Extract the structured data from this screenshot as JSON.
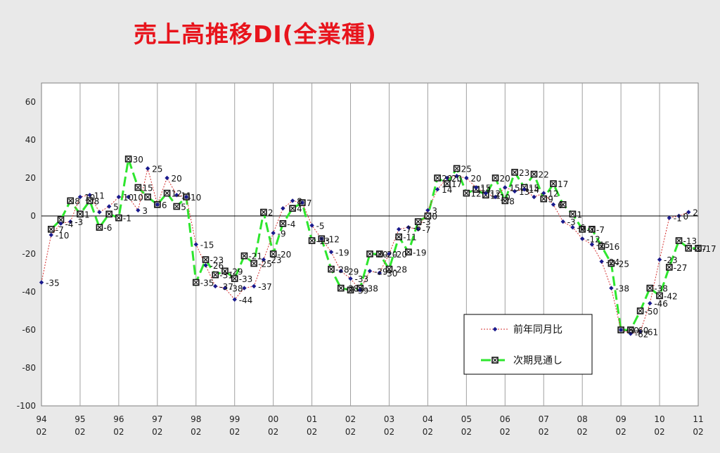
{
  "title": "売上高推移DI(全業種)",
  "chart_data": {
    "type": "line",
    "ylim": [
      -100,
      70
    ],
    "yticks": [
      60,
      40,
      20,
      0,
      -20,
      -40,
      -60,
      -80,
      -100
    ],
    "x_year_ticks": [
      "94",
      "95",
      "96",
      "97",
      "98",
      "99",
      "00",
      "01",
      "02",
      "03",
      "04",
      "05",
      "06",
      "07",
      "08",
      "09",
      "10",
      "11"
    ],
    "x_month_ticks": [
      "02",
      "02",
      "02",
      "02",
      "02",
      "02",
      "02",
      "02",
      "02",
      "02",
      "02",
      "02",
      "02",
      "02",
      "02",
      "02",
      "02",
      "02"
    ],
    "grid": true,
    "legend_position": "bottom-right",
    "series": [
      {
        "name": "前年同月比",
        "color": "#d43030",
        "marker_color": "#1a1a8c",
        "points": [
          [
            0,
            -35
          ],
          [
            0.25,
            -10
          ],
          [
            0.5,
            -4
          ],
          [
            0.75,
            -3
          ],
          [
            1,
            10
          ],
          [
            1.25,
            11
          ],
          [
            1.5,
            2
          ],
          [
            1.75,
            5
          ],
          [
            2,
            10
          ],
          [
            2.25,
            10
          ],
          [
            2.5,
            3
          ],
          [
            2.75,
            25
          ],
          [
            3,
            6
          ],
          [
            3.25,
            20
          ],
          [
            3.5,
            11
          ],
          [
            3.75,
            10
          ],
          [
            4,
            -15
          ],
          [
            4.25,
            -26
          ],
          [
            4.5,
            -37
          ],
          [
            4.75,
            -38
          ],
          [
            5,
            -44
          ],
          [
            5.25,
            -38
          ],
          [
            5.5,
            -37
          ],
          [
            5.75,
            -23
          ],
          [
            6,
            -9
          ],
          [
            6.25,
            4
          ],
          [
            6.5,
            8
          ],
          [
            6.75,
            7
          ],
          [
            7,
            -5
          ],
          [
            7.25,
            -12
          ],
          [
            7.5,
            -19
          ],
          [
            7.75,
            -29
          ],
          [
            8,
            -33
          ],
          [
            8.25,
            -39
          ],
          [
            8.5,
            -29
          ],
          [
            8.75,
            -30
          ],
          [
            9,
            -20
          ],
          [
            9.25,
            -7
          ],
          [
            9.5,
            -6
          ],
          [
            9.75,
            -7
          ],
          [
            10,
            3
          ],
          [
            10.25,
            14
          ],
          [
            10.5,
            20
          ],
          [
            10.75,
            21
          ],
          [
            11,
            20
          ],
          [
            11.25,
            15
          ],
          [
            11.5,
            12
          ],
          [
            11.75,
            10
          ],
          [
            12,
            15
          ],
          [
            12.25,
            13
          ],
          [
            12.5,
            14
          ],
          [
            12.75,
            10
          ],
          [
            13,
            12
          ],
          [
            13.25,
            6
          ],
          [
            13.5,
            -3
          ],
          [
            13.75,
            -6
          ],
          [
            14,
            -12
          ],
          [
            14.25,
            -15
          ],
          [
            14.5,
            -24
          ],
          [
            14.75,
            -38
          ],
          [
            15,
            -60
          ],
          [
            15.25,
            -62
          ],
          [
            15.5,
            -61
          ],
          [
            15.75,
            -46
          ],
          [
            16,
            -23
          ],
          [
            16.25,
            -1
          ],
          [
            16.5,
            0
          ],
          [
            16.75,
            2
          ]
        ]
      },
      {
        "name": "次期見通し",
        "color": "#2ee62e",
        "marker_color": "#111111",
        "points": [
          [
            0.25,
            -7
          ],
          [
            0.5,
            -2
          ],
          [
            0.75,
            8
          ],
          [
            1,
            1
          ],
          [
            1.25,
            8
          ],
          [
            1.5,
            -6
          ],
          [
            1.75,
            1
          ],
          [
            2,
            -1
          ],
          [
            2.25,
            30
          ],
          [
            2.5,
            15
          ],
          [
            2.75,
            10
          ],
          [
            3,
            6
          ],
          [
            3.25,
            12
          ],
          [
            3.5,
            5
          ],
          [
            3.75,
            10
          ],
          [
            4,
            -35
          ],
          [
            4.25,
            -23
          ],
          [
            4.5,
            -31
          ],
          [
            4.75,
            -29
          ],
          [
            5,
            -33
          ],
          [
            5.25,
            -21
          ],
          [
            5.5,
            -25
          ],
          [
            5.75,
            2
          ],
          [
            6,
            -20
          ],
          [
            6.25,
            -4
          ],
          [
            6.5,
            4
          ],
          [
            6.75,
            7
          ],
          [
            7,
            -13
          ],
          [
            7.25,
            -12
          ],
          [
            7.5,
            -28
          ],
          [
            7.75,
            -38
          ],
          [
            8,
            -39
          ],
          [
            8.25,
            -38
          ],
          [
            8.5,
            -20
          ],
          [
            8.75,
            -20
          ],
          [
            9,
            -28
          ],
          [
            9.25,
            -11
          ],
          [
            9.5,
            -19
          ],
          [
            9.75,
            -3
          ],
          [
            10,
            0
          ],
          [
            10.25,
            20
          ],
          [
            10.5,
            17
          ],
          [
            10.75,
            25
          ],
          [
            11,
            12
          ],
          [
            11.25,
            14
          ],
          [
            11.5,
            11
          ],
          [
            11.75,
            20
          ],
          [
            12,
            8
          ],
          [
            12.25,
            23
          ],
          [
            12.5,
            15
          ],
          [
            12.75,
            22
          ],
          [
            13,
            9
          ],
          [
            13.25,
            17
          ],
          [
            13.5,
            6
          ],
          [
            13.75,
            1
          ],
          [
            14,
            -7
          ],
          [
            14.25,
            -7
          ],
          [
            14.5,
            -16
          ],
          [
            14.75,
            -25
          ],
          [
            15,
            -60
          ],
          [
            15.25,
            -60
          ],
          [
            15.5,
            -50
          ],
          [
            15.75,
            -38
          ],
          [
            16,
            -42
          ],
          [
            16.25,
            -27
          ],
          [
            16.5,
            -13
          ],
          [
            16.75,
            -17
          ],
          [
            17,
            -17
          ]
        ]
      }
    ],
    "labels_a": [
      [
        0,
        -35,
        "-35"
      ],
      [
        0.25,
        -10,
        "-10"
      ],
      [
        0.5,
        -4,
        "-4"
      ],
      [
        0.75,
        -3,
        "-3"
      ],
      [
        1,
        10,
        "10"
      ],
      [
        1.25,
        11,
        "11"
      ],
      [
        1.75,
        5,
        "5"
      ],
      [
        2,
        10,
        "10"
      ],
      [
        2.25,
        10,
        "10"
      ],
      [
        2.5,
        3,
        "3"
      ],
      [
        2.75,
        25,
        "25"
      ],
      [
        3.25,
        20,
        "20"
      ],
      [
        3.5,
        11,
        "11"
      ],
      [
        4,
        -15,
        "-15"
      ],
      [
        4.25,
        -26,
        "-26"
      ],
      [
        4.5,
        -37,
        "-37"
      ],
      [
        4.75,
        -38,
        "-38"
      ],
      [
        5,
        -44,
        "-44"
      ],
      [
        5.5,
        -37,
        "-37"
      ],
      [
        5.75,
        -23,
        "-23"
      ],
      [
        6,
        -9,
        "-9"
      ],
      [
        6.5,
        8,
        "8"
      ],
      [
        7,
        -5,
        "-5"
      ],
      [
        7.25,
        -12,
        "-12"
      ],
      [
        7.5,
        -19,
        "-19"
      ],
      [
        7.75,
        -29,
        "-29"
      ],
      [
        8,
        -33,
        "-33"
      ],
      [
        8.5,
        -29,
        "-29"
      ],
      [
        8.75,
        -30,
        "-30"
      ],
      [
        9,
        -20,
        "-20"
      ],
      [
        9.25,
        -7,
        "-7"
      ],
      [
        9.5,
        -6,
        "-6"
      ],
      [
        9.75,
        -7,
        "-7"
      ],
      [
        10,
        3,
        "3"
      ],
      [
        10.25,
        14,
        "14"
      ],
      [
        10.5,
        20,
        "20"
      ],
      [
        11,
        20,
        "20"
      ],
      [
        11.25,
        15,
        "15"
      ],
      [
        11.5,
        12,
        "12"
      ],
      [
        11.75,
        10,
        "10"
      ],
      [
        12,
        15,
        "15"
      ],
      [
        12.25,
        13,
        "13"
      ],
      [
        12.5,
        14,
        "14"
      ],
      [
        13,
        12,
        "12"
      ],
      [
        13.25,
        6,
        "6"
      ],
      [
        13.5,
        -3,
        "-3"
      ],
      [
        13.75,
        -6,
        "-6"
      ],
      [
        14,
        -12,
        "-12"
      ],
      [
        14.25,
        -15,
        "-15"
      ],
      [
        14.5,
        -24,
        "-24"
      ],
      [
        14.75,
        -38,
        "-38"
      ],
      [
        15.25,
        -62,
        "-62"
      ],
      [
        15.5,
        -61,
        "-61"
      ],
      [
        15.75,
        -46,
        "-46"
      ],
      [
        16,
        -23,
        "-23"
      ],
      [
        16.25,
        -1,
        "-1"
      ],
      [
        16.5,
        0,
        "0"
      ],
      [
        16.75,
        2,
        "2"
      ]
    ],
    "labels_b": [
      [
        0.25,
        -7,
        "-7"
      ],
      [
        0.75,
        8,
        "8"
      ],
      [
        1,
        1,
        "1"
      ],
      [
        1.25,
        8,
        "8"
      ],
      [
        1.5,
        -6,
        "-6"
      ],
      [
        2,
        -1,
        "-1"
      ],
      [
        2.25,
        30,
        "30"
      ],
      [
        2.5,
        15,
        "15"
      ],
      [
        3,
        6,
        "6"
      ],
      [
        3.25,
        12,
        "12"
      ],
      [
        3.5,
        5,
        "5"
      ],
      [
        3.75,
        10,
        "10"
      ],
      [
        4,
        -35,
        "-35"
      ],
      [
        4.25,
        -23,
        "-23"
      ],
      [
        4.5,
        -31,
        "-31"
      ],
      [
        4.75,
        -29,
        "-29"
      ],
      [
        5,
        -33,
        "-33"
      ],
      [
        5.25,
        -21,
        "-21"
      ],
      [
        5.5,
        -25,
        "-25"
      ],
      [
        5.75,
        2,
        "2"
      ],
      [
        6,
        -20,
        "-20"
      ],
      [
        6.25,
        -4,
        "-4"
      ],
      [
        6.5,
        4,
        "4"
      ],
      [
        6.75,
        7,
        "7"
      ],
      [
        7,
        -13,
        "-13"
      ],
      [
        7.5,
        -28,
        "-28"
      ],
      [
        7.75,
        -38,
        "-38"
      ],
      [
        8,
        -39,
        "-39"
      ],
      [
        8.25,
        -38,
        "-38"
      ],
      [
        8.5,
        -20,
        "-20"
      ],
      [
        8.75,
        -20,
        "-20"
      ],
      [
        9,
        -28,
        "-28"
      ],
      [
        9.25,
        -11,
        "-11"
      ],
      [
        9.5,
        -19,
        "-19"
      ],
      [
        9.75,
        -3,
        "-3"
      ],
      [
        10,
        0,
        "0"
      ],
      [
        10.25,
        20,
        "20"
      ],
      [
        10.5,
        17,
        "17"
      ],
      [
        10.75,
        25,
        "25"
      ],
      [
        11,
        12,
        "12"
      ],
      [
        11.25,
        14,
        "14"
      ],
      [
        11.5,
        11,
        "11"
      ],
      [
        11.75,
        20,
        "20"
      ],
      [
        12,
        8,
        "8"
      ],
      [
        12.25,
        23,
        "23"
      ],
      [
        12.5,
        15,
        "15"
      ],
      [
        12.75,
        22,
        "22"
      ],
      [
        13,
        9,
        "9"
      ],
      [
        13.25,
        17,
        "17"
      ],
      [
        13.75,
        1,
        "1"
      ],
      [
        14,
        -7,
        "-7"
      ],
      [
        14.25,
        -7,
        "-7"
      ],
      [
        14.5,
        -16,
        "-16"
      ],
      [
        14.75,
        -25,
        "-25"
      ],
      [
        15,
        -60,
        "-60"
      ],
      [
        15.25,
        -60,
        "-60"
      ],
      [
        15.5,
        -50,
        "-50"
      ],
      [
        15.75,
        -38,
        "-38"
      ],
      [
        16,
        -42,
        "-42"
      ],
      [
        16.25,
        -27,
        "-27"
      ],
      [
        16.5,
        -13,
        "-13"
      ],
      [
        16.75,
        -17,
        "-17"
      ],
      [
        17,
        -17,
        "-17"
      ]
    ]
  }
}
